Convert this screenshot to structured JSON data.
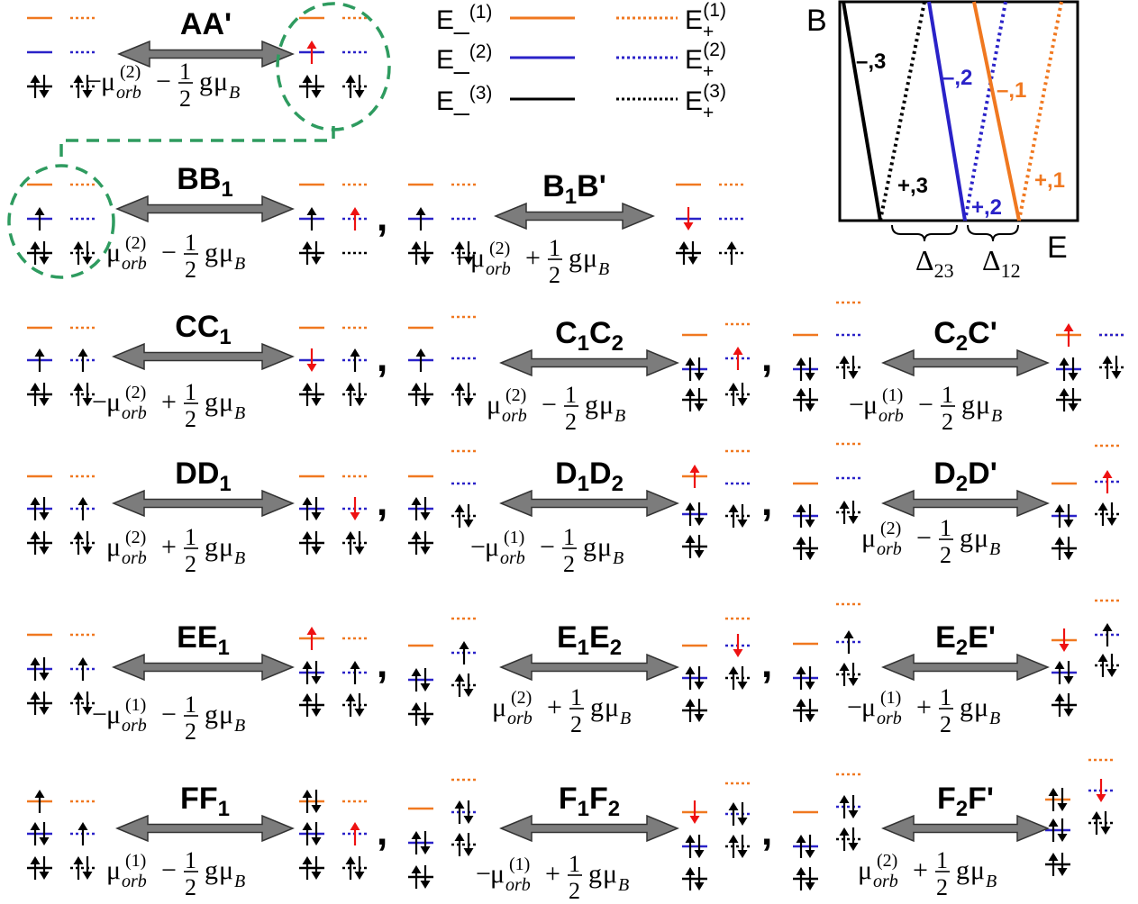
{
  "colors": {
    "orange": "#f07820",
    "blue": "#2a22c8",
    "black": "#000000",
    "red": "#ee1111",
    "green": "#2e9b5f",
    "arrow_fill": "#7c7c7c"
  },
  "legend": {
    "items": [
      {
        "label": "E_",
        "sup": "(1)",
        "minus": true,
        "color": "orange",
        "style": "solid"
      },
      {
        "label": "E_",
        "sup": "(2)",
        "minus": true,
        "color": "blue",
        "style": "solid"
      },
      {
        "label": "E_",
        "sup": "(3)",
        "minus": true,
        "color": "black",
        "style": "solid"
      },
      {
        "label": "E",
        "sub": "+",
        "sup": "(1)",
        "color": "orange",
        "style": "dotted"
      },
      {
        "label": "E",
        "sub": "+",
        "sup": "(2)",
        "color": "blue",
        "style": "dotted"
      },
      {
        "label": "E",
        "sub": "+",
        "sup": "(3)",
        "color": "black",
        "style": "dotted"
      }
    ]
  },
  "inset": {
    "y_label": "B",
    "x_label": "E",
    "band_labels": [
      "–,3",
      "–,2",
      "–,1",
      "+,3",
      "+,2",
      "+,1"
    ],
    "deltas": [
      {
        "sym": "Δ",
        "sub": "23"
      },
      {
        "sym": "Δ",
        "sub": "12"
      }
    ]
  },
  "transitions": [
    {
      "name": "AA'",
      "parts": [
        "AA",
        "'"
      ],
      "formula": {
        "minus": true,
        "orb": "(2)",
        "op": "−"
      }
    },
    {
      "name": "BB1",
      "parts": [
        "BB",
        "1"
      ],
      "formula": {
        "minus": false,
        "orb": "(2)",
        "op": "−"
      }
    },
    {
      "name": "B1B'",
      "parts": [
        "B",
        "1",
        "B'"
      ],
      "formula": {
        "minus": true,
        "orb": "(2)",
        "op": "+"
      }
    },
    {
      "name": "CC1",
      "parts": [
        "CC",
        "1"
      ],
      "formula": {
        "minus": true,
        "orb": "(2)",
        "op": "+"
      }
    },
    {
      "name": "C1C2",
      "parts": [
        "C",
        "1",
        "C",
        "2"
      ],
      "formula": {
        "minus": false,
        "orb": "(2)",
        "op": "−"
      }
    },
    {
      "name": "C2C'",
      "parts": [
        "C",
        "2",
        "C'"
      ],
      "formula": {
        "minus": true,
        "orb": "(1)",
        "op": "−"
      }
    },
    {
      "name": "DD1",
      "parts": [
        "DD",
        "1"
      ],
      "formula": {
        "minus": false,
        "orb": "(2)",
        "op": "+"
      }
    },
    {
      "name": "D1D2",
      "parts": [
        "D",
        "1",
        "D",
        "2"
      ],
      "formula": {
        "minus": true,
        "orb": "(1)",
        "op": "−"
      }
    },
    {
      "name": "D2D'",
      "parts": [
        "D",
        "2",
        "D'"
      ],
      "formula": {
        "minus": false,
        "orb": "(2)",
        "op": "−"
      }
    },
    {
      "name": "EE1",
      "parts": [
        "EE",
        "1"
      ],
      "formula": {
        "minus": true,
        "orb": "(1)",
        "op": "−"
      }
    },
    {
      "name": "E1E2",
      "parts": [
        "E",
        "1",
        "E",
        "2"
      ],
      "formula": {
        "minus": false,
        "orb": "(2)",
        "op": "+"
      }
    },
    {
      "name": "E2E'",
      "parts": [
        "E",
        "2",
        "E'"
      ],
      "formula": {
        "minus": true,
        "orb": "(1)",
        "op": "+"
      }
    },
    {
      "name": "FF1",
      "parts": [
        "FF",
        "1"
      ],
      "formula": {
        "minus": false,
        "orb": "(1)",
        "op": "−"
      }
    },
    {
      "name": "F1F2",
      "parts": [
        "F",
        "1",
        "F",
        "2"
      ],
      "formula": {
        "minus": true,
        "orb": "(1)",
        "op": "+"
      }
    },
    {
      "name": "F2F'",
      "parts": [
        "F",
        "2",
        "F'"
      ],
      "formula": {
        "minus": false,
        "orb": "(2)",
        "op": "+"
      }
    }
  ],
  "formula_text": {
    "mu": "μ",
    "orb": "orb",
    "half_num": "1",
    "half_den": "2",
    "g": "g",
    "B": "B",
    "minus": "−"
  },
  "comma": ","
}
